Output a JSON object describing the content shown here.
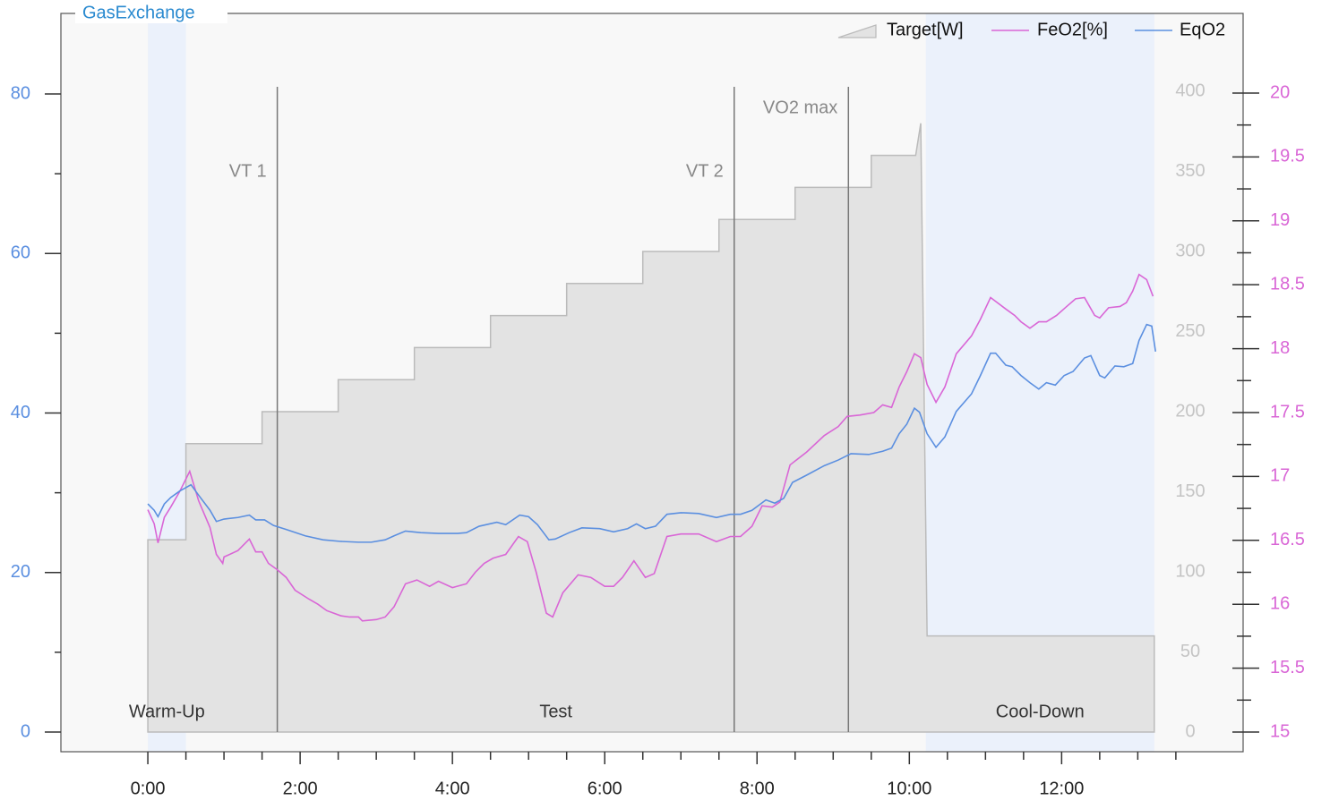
{
  "chart_data": {
    "type": "line",
    "title": "GasExchange",
    "xlim": [
      -68.5,
      863
    ],
    "xticks": [
      {
        "value": 0,
        "label": "0:00"
      },
      {
        "value": 120,
        "label": "2:00"
      },
      {
        "value": 240,
        "label": "4:00"
      },
      {
        "value": 360,
        "label": "6:00"
      },
      {
        "value": 480,
        "label": "8:00"
      },
      {
        "value": 600,
        "label": "10:00"
      },
      {
        "value": 720,
        "label": "12:00"
      }
    ],
    "xminorticks": [
      30,
      60,
      90,
      150,
      180,
      210,
      270,
      300,
      330,
      390,
      420,
      450,
      510,
      540,
      570,
      630,
      660,
      690,
      750,
      780,
      810
    ],
    "ylim": [
      -2.47,
      90.1
    ],
    "yticks": [
      0,
      20,
      40,
      60,
      80
    ],
    "yminorticks": [
      10,
      30,
      50,
      70
    ],
    "y2lim": [
      -12.3,
      448.6
    ],
    "y2ticks": [
      0,
      50,
      100,
      150,
      200,
      250,
      300,
      350,
      400
    ],
    "y3lim": [
      14.846,
      20.623
    ],
    "y3ticks": [
      15,
      15.5,
      16,
      16.5,
      17,
      17.5,
      18,
      18.5,
      19,
      19.5,
      20
    ],
    "y3minorticks": [
      15.25,
      15.75,
      16.25,
      16.75,
      17.25,
      17.75,
      18.25,
      18.75,
      19.25,
      19.75
    ],
    "legend": "top-right",
    "phase_color": "#ebf1fb",
    "phases": [
      {
        "label": "Warm-Up",
        "start": 0,
        "end": 30,
        "shaded": true
      },
      {
        "label": "Test",
        "start": 30,
        "end": 613,
        "shaded": false
      },
      {
        "label": "Cool-Down",
        "start": 613,
        "end": 793,
        "shaded": true
      }
    ],
    "markers": [
      {
        "label": "VT 1",
        "x": 102
      },
      {
        "label": "VT 2",
        "x": 462
      },
      {
        "label": "VO2 max",
        "x": 552
      }
    ],
    "series": [
      {
        "name": "Target[W]",
        "type": "area",
        "axis": "y2",
        "color": "#bbbbbb",
        "fill": "#e3e3e3",
        "x": [
          0,
          30,
          30,
          90,
          90,
          150,
          150,
          210,
          210,
          270,
          270,
          330,
          330,
          390,
          390,
          450,
          450,
          510,
          510,
          570,
          570,
          605,
          609,
          614,
          793
        ],
        "values": [
          120,
          120,
          180,
          180,
          200,
          200,
          220,
          220,
          240,
          240,
          260,
          260,
          280,
          280,
          300,
          300,
          320,
          320,
          340,
          340,
          360,
          360,
          380,
          60,
          60
        ]
      },
      {
        "name": "FeO2[%]",
        "type": "line",
        "axis": "y3",
        "color": "#d966d6",
        "x": [
          0,
          5,
          8,
          13,
          18,
          25,
          33,
          40,
          49,
          54,
          59,
          60,
          71,
          80,
          85,
          90,
          95,
          102,
          109,
          116,
          127,
          134,
          141,
          152,
          159,
          166,
          169,
          180,
          187,
          194,
          203,
          212,
          222,
          229,
          240,
          251,
          258,
          265,
          272,
          282,
          292,
          299,
          306,
          314,
          319,
          327,
          339,
          349,
          360,
          367,
          374,
          383,
          392,
          399,
          409,
          420,
          434,
          448,
          459,
          467,
          476,
          484,
          492,
          498,
          506,
          519,
          533,
          544,
          551,
          561,
          572,
          579,
          586,
          592,
          598,
          604,
          609,
          614,
          621,
          628,
          637,
          649,
          656,
          664,
          668,
          676,
          683,
          688,
          695,
          702,
          708,
          716,
          724,
          731,
          738,
          746,
          750,
          757,
          766,
          771,
          776,
          781,
          787,
          792
        ],
        "values": [
          16.74,
          16.63,
          16.48,
          16.68,
          16.76,
          16.88,
          17.04,
          16.81,
          16.6,
          16.39,
          16.32,
          16.37,
          16.42,
          16.51,
          16.41,
          16.41,
          16.32,
          16.27,
          16.21,
          16.11,
          16.04,
          16.0,
          15.95,
          15.91,
          15.9,
          15.9,
          15.87,
          15.88,
          15.9,
          15.98,
          16.16,
          16.19,
          16.14,
          16.18,
          16.13,
          16.16,
          16.25,
          16.32,
          16.36,
          16.39,
          16.53,
          16.49,
          16.25,
          15.93,
          15.9,
          16.09,
          16.23,
          16.21,
          16.14,
          16.14,
          16.21,
          16.34,
          16.21,
          16.24,
          16.53,
          16.55,
          16.55,
          16.49,
          16.53,
          16.53,
          16.61,
          16.77,
          16.76,
          16.8,
          17.09,
          17.19,
          17.32,
          17.39,
          17.47,
          17.48,
          17.5,
          17.56,
          17.54,
          17.7,
          17.82,
          17.96,
          17.93,
          17.72,
          17.58,
          17.7,
          17.96,
          18.1,
          18.23,
          18.4,
          18.37,
          18.31,
          18.26,
          18.21,
          18.16,
          18.21,
          18.21,
          18.26,
          18.33,
          18.39,
          18.4,
          18.26,
          18.24,
          18.32,
          18.33,
          18.36,
          18.45,
          18.58,
          18.54,
          18.41
        ]
      },
      {
        "name": "EqO2",
        "type": "line",
        "axis": "y",
        "color": "#5b8fe0",
        "x": [
          0,
          5,
          8,
          13,
          18,
          25,
          34,
          40,
          49,
          54,
          60,
          71,
          80,
          85,
          92,
          99,
          109,
          124,
          138,
          152,
          166,
          176,
          187,
          194,
          203,
          215,
          229,
          244,
          251,
          261,
          275,
          282,
          293,
          300,
          307,
          316,
          321,
          332,
          342,
          356,
          367,
          378,
          385,
          392,
          400,
          409,
          420,
          434,
          448,
          459,
          467,
          476,
          487,
          494,
          501,
          508,
          519,
          533,
          544,
          554,
          568,
          579,
          586,
          592,
          598,
          604,
          608,
          614,
          621,
          628,
          637,
          649,
          656,
          664,
          668,
          676,
          681,
          688,
          695,
          702,
          708,
          715,
          722,
          729,
          738,
          743,
          750,
          754,
          762,
          769,
          776,
          781,
          787,
          791,
          794
        ],
        "values": [
          28.6,
          27.8,
          27.0,
          28.6,
          29.4,
          30.2,
          31.0,
          29.7,
          27.8,
          26.4,
          26.7,
          26.9,
          27.2,
          26.6,
          26.6,
          25.9,
          25.4,
          24.6,
          24.1,
          23.9,
          23.8,
          23.8,
          24.1,
          24.6,
          25.2,
          25.0,
          24.9,
          24.9,
          25.0,
          25.8,
          26.3,
          26.0,
          27.2,
          27.0,
          26.0,
          24.1,
          24.2,
          25.0,
          25.6,
          25.5,
          25.1,
          25.5,
          26.1,
          25.5,
          25.8,
          27.3,
          27.5,
          27.4,
          26.9,
          27.3,
          27.3,
          27.8,
          29.1,
          28.7,
          29.3,
          31.3,
          32.2,
          33.4,
          34.1,
          34.9,
          34.8,
          35.2,
          35.6,
          37.4,
          38.6,
          40.6,
          40.1,
          37.4,
          35.7,
          37.0,
          40.2,
          42.4,
          44.7,
          47.5,
          47.5,
          46.0,
          45.8,
          44.7,
          43.8,
          43.0,
          43.8,
          43.5,
          44.7,
          45.2,
          46.9,
          47.2,
          44.7,
          44.4,
          45.9,
          45.8,
          46.2,
          49.1,
          51.1,
          50.9,
          47.7
        ]
      }
    ]
  }
}
